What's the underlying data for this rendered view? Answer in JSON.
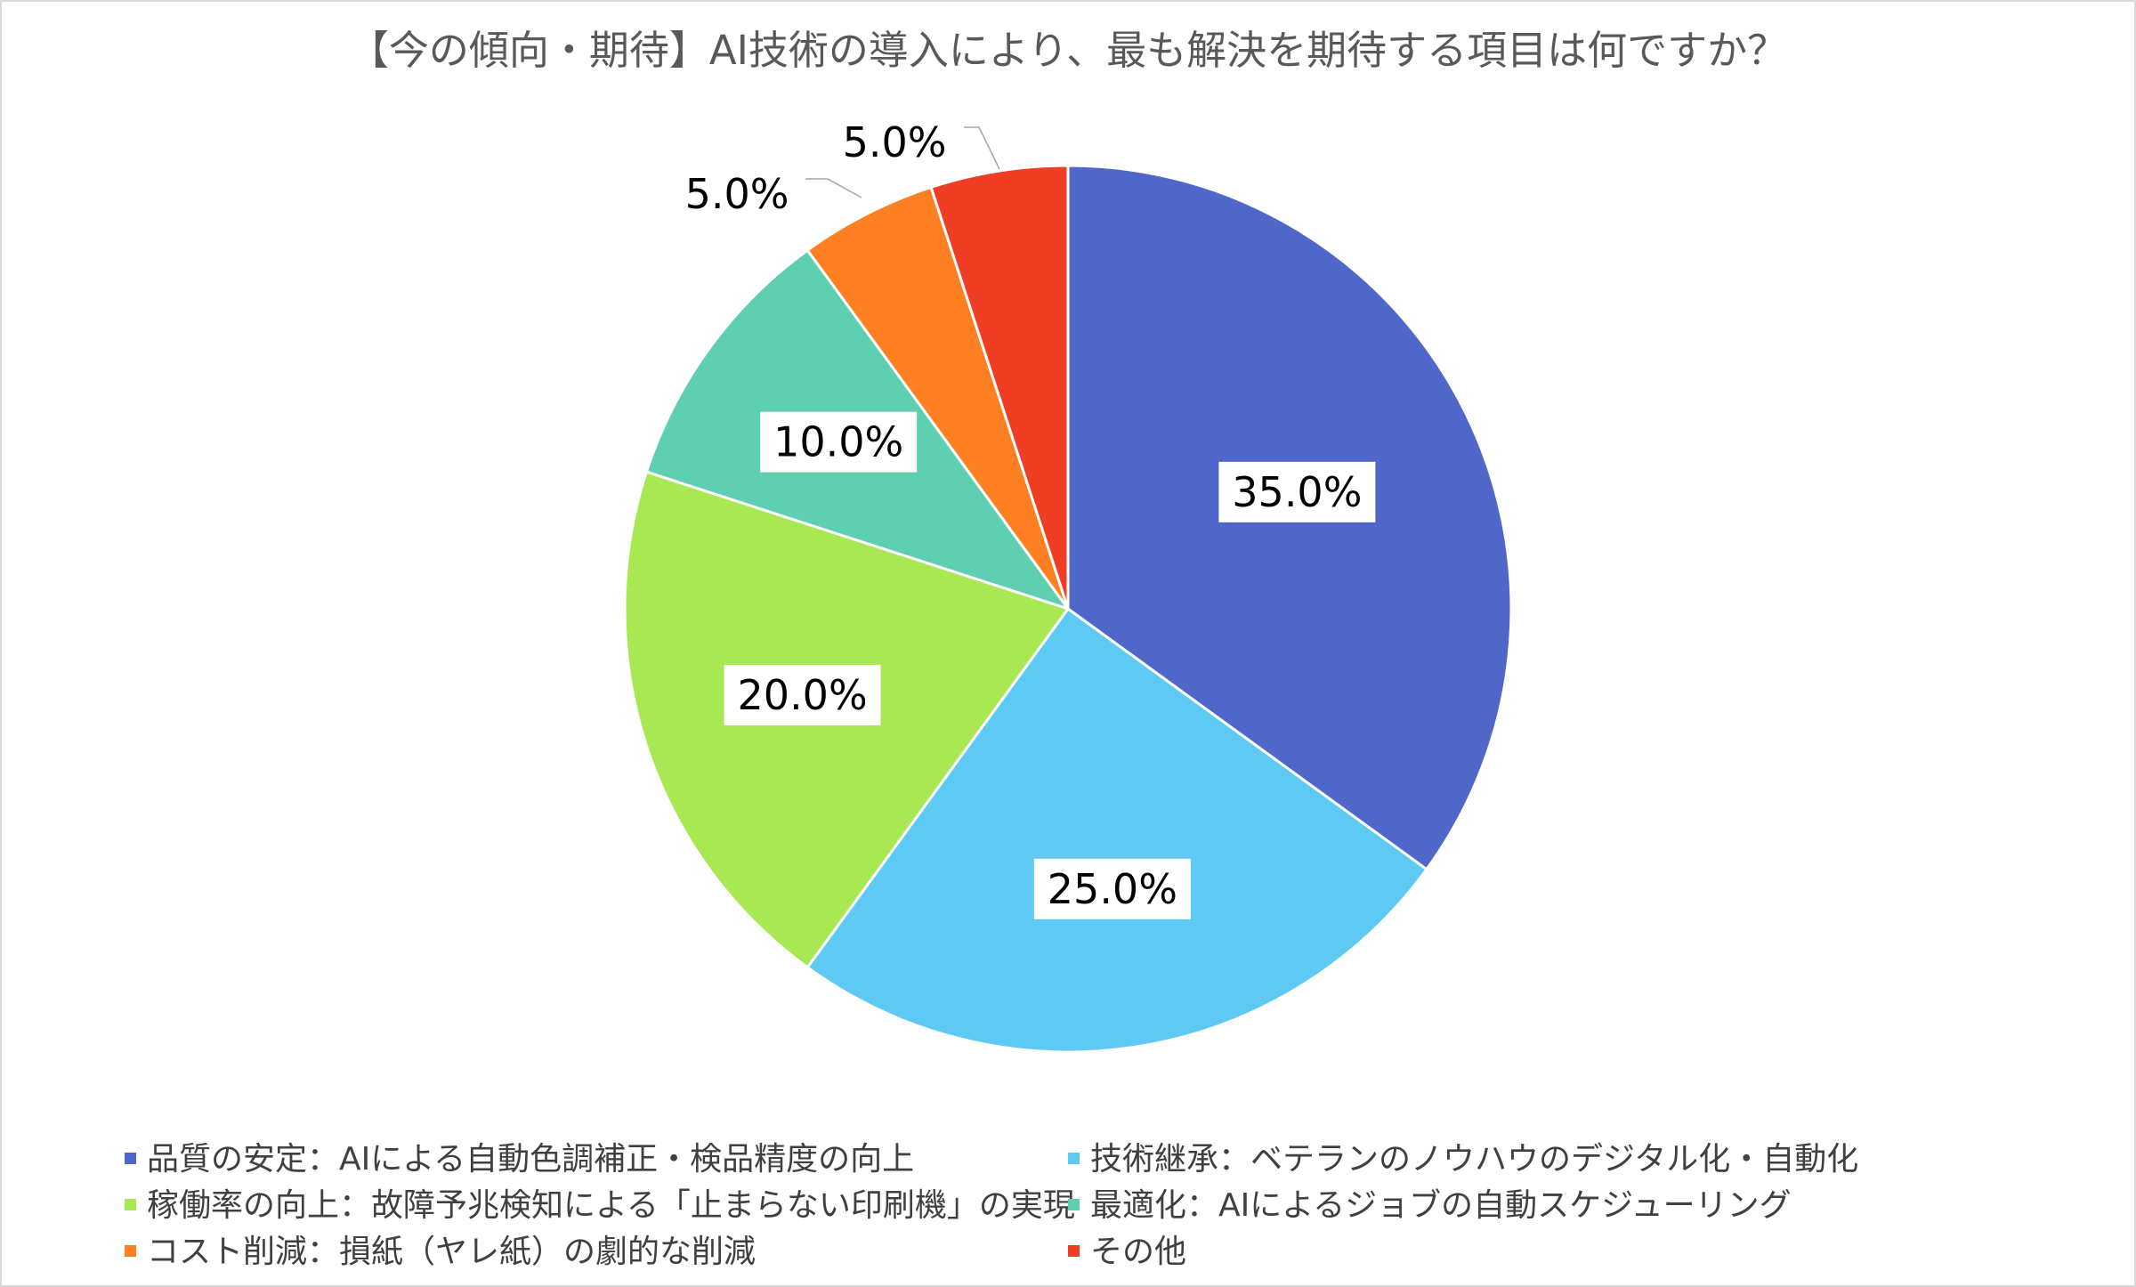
{
  "chart_data": {
    "type": "pie",
    "title": "【今の傾向・期待】AI技術の導入により、最も解決を期待する項目は何ですか？",
    "categories": [
      "品質の安定：AIによる自動色調補正・検品精度の向上",
      "技術継承：ベテランのノウハウのデジタル化・自動化",
      "稼働率の向上：故障予兆検知による「止まらない印刷機」の実現",
      "最適化：AIによるジョブの自動スケジューリング",
      "コスト削減：損紙（ヤレ紙）の劇的な削減",
      "その他"
    ],
    "values": [
      35.0,
      25.0,
      20.0,
      10.0,
      5.0,
      5.0
    ],
    "data_labels": [
      "35.0%",
      "25.0%",
      "20.0%",
      "10.0%",
      "5.0%",
      "5.0%"
    ],
    "colors": [
      "#4f67c9",
      "#5ec9f2",
      "#a8e852",
      "#5ecfb0",
      "#ff8022",
      "#f03e24"
    ],
    "legend_position": "bottom",
    "start_angle": "12 o'clock",
    "direction": "clockwise"
  }
}
